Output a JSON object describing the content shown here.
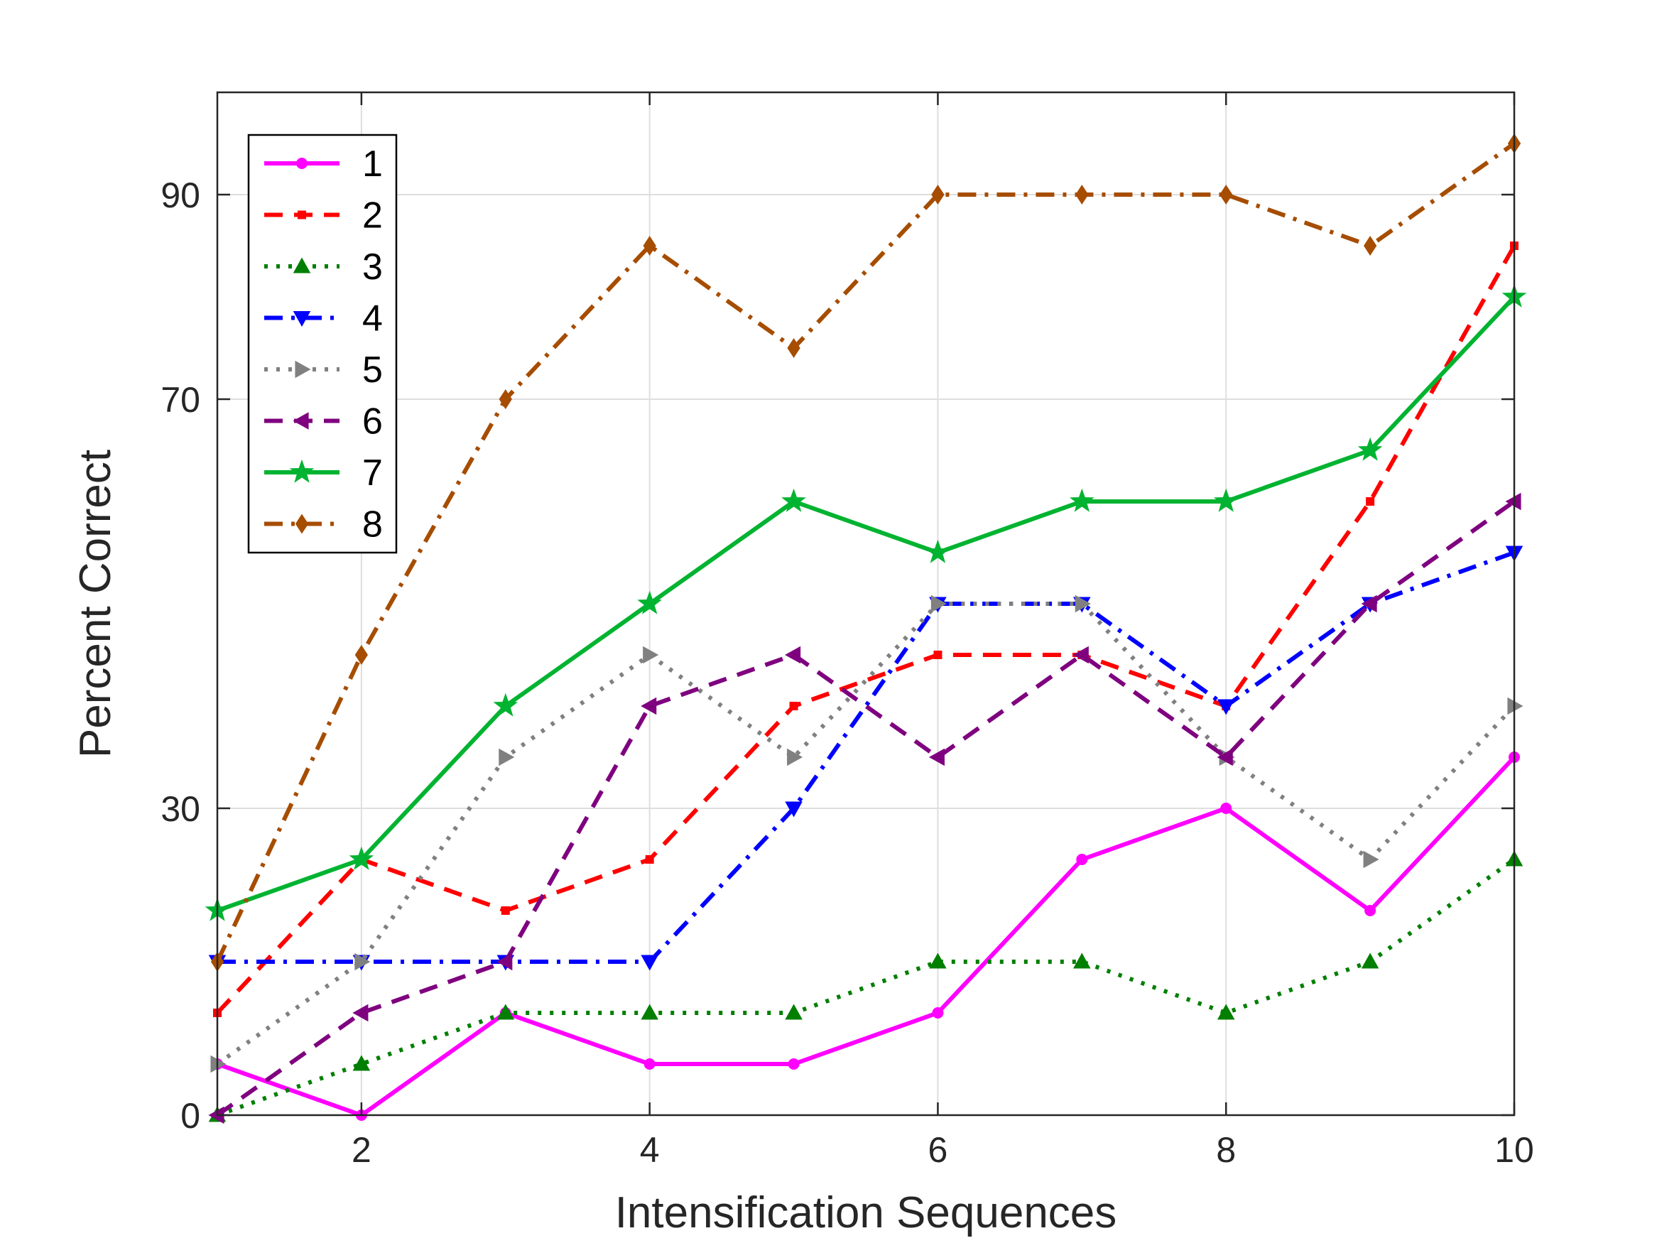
{
  "chart_data": {
    "type": "line",
    "title": "",
    "xlabel": "Intensification Sequences",
    "ylabel": "Percent Correct",
    "xlim": [
      1,
      10
    ],
    "ylim": [
      0,
      100
    ],
    "xticks": [
      2,
      4,
      6,
      8,
      10
    ],
    "yticks": [
      0,
      30,
      70,
      90
    ],
    "grid": true,
    "legend_position": "top-left",
    "x": [
      1,
      2,
      3,
      4,
      5,
      6,
      7,
      8,
      9,
      10
    ],
    "series": [
      {
        "name": "1",
        "color": "#FF00FF",
        "dash": "solid",
        "marker": "circle",
        "values": [
          5,
          0,
          10,
          5,
          5,
          10,
          25,
          30,
          20,
          35
        ]
      },
      {
        "name": "2",
        "color": "#FF0000",
        "dash": "dashed",
        "marker": "square",
        "values": [
          10,
          25,
          20,
          25,
          40,
          45,
          45,
          40,
          60,
          85
        ]
      },
      {
        "name": "3",
        "color": "#007F00",
        "dash": "dotted",
        "marker": "triangle-up",
        "values": [
          0,
          5,
          10,
          10,
          10,
          15,
          15,
          10,
          15,
          25
        ]
      },
      {
        "name": "4",
        "color": "#0000FF",
        "dash": "dashdot",
        "marker": "triangle-down",
        "values": [
          15,
          15,
          15,
          15,
          30,
          50,
          50,
          40,
          50,
          55
        ]
      },
      {
        "name": "5",
        "color": "#808080",
        "dash": "dotted",
        "marker": "triangle-right",
        "values": [
          5,
          15,
          35,
          45,
          35,
          50,
          50,
          35,
          25,
          40
        ]
      },
      {
        "name": "6",
        "color": "#7F007F",
        "dash": "dashed",
        "marker": "triangle-left",
        "values": [
          0,
          10,
          15,
          40,
          45,
          35,
          45,
          35,
          50,
          60
        ]
      },
      {
        "name": "7",
        "color": "#00B330",
        "dash": "solid",
        "marker": "star",
        "values": [
          20,
          25,
          40,
          50,
          60,
          55,
          60,
          60,
          65,
          80
        ]
      },
      {
        "name": "8",
        "color": "#A64D00",
        "dash": "dashdot",
        "marker": "diamond",
        "values": [
          15,
          45,
          70,
          85,
          75,
          90,
          90,
          90,
          85,
          95
        ]
      }
    ]
  }
}
